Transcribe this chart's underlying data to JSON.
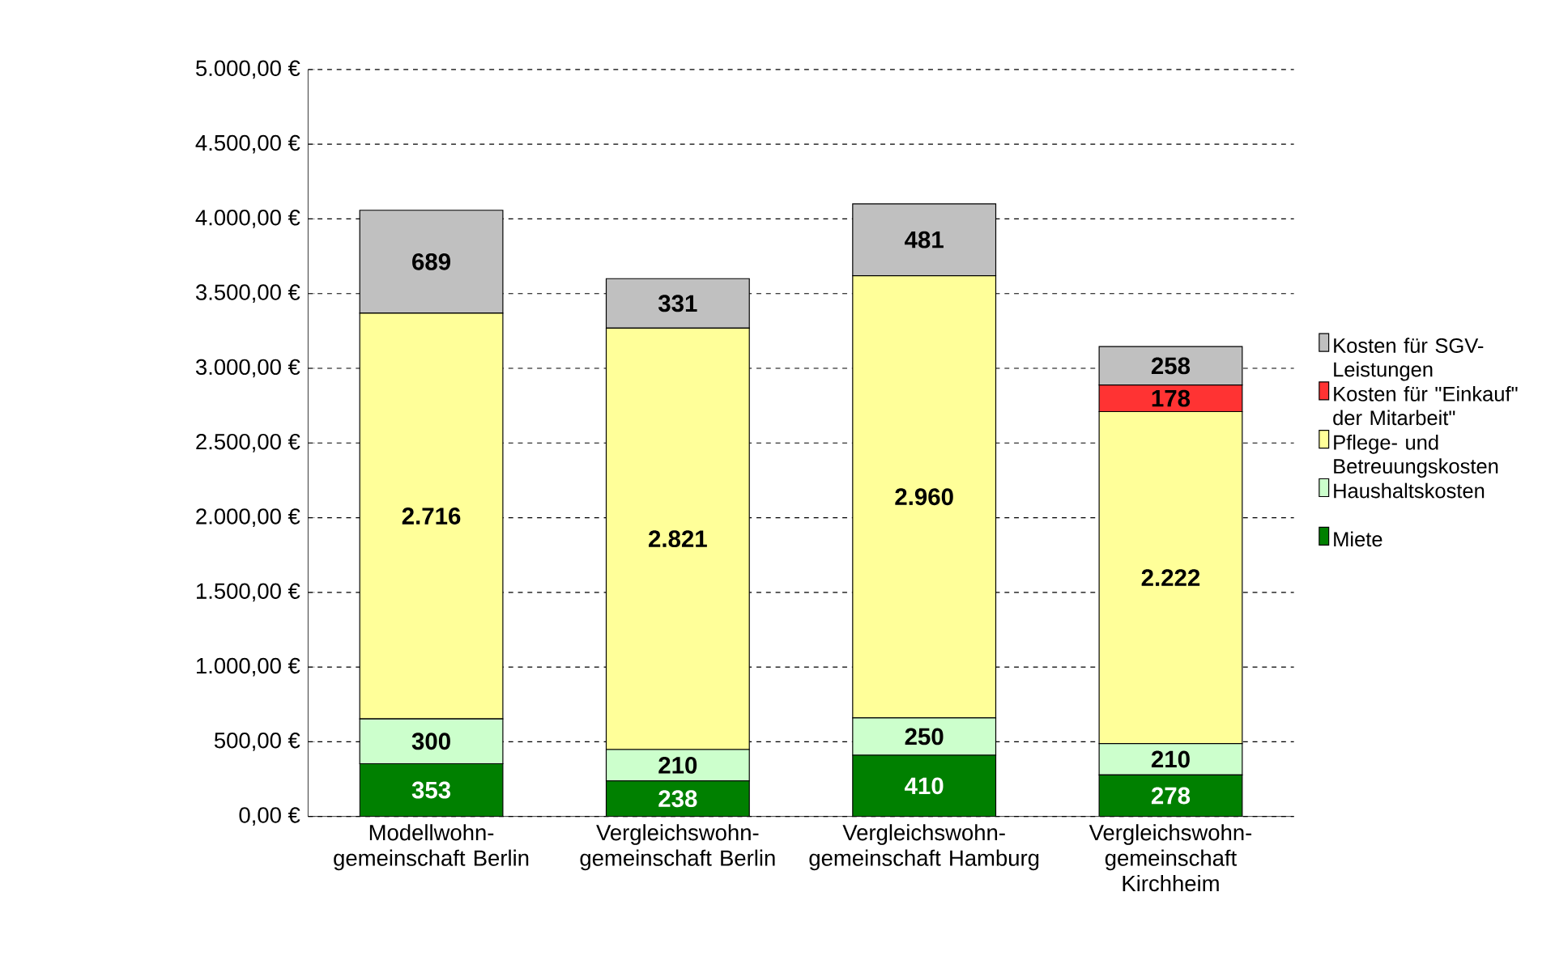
{
  "chart_data": {
    "type": "bar",
    "stacked": true,
    "categories": [
      "Modellwohn-gemeinschaft Berlin",
      "Vergleichswohn-gemeinschaft Berlin",
      "Vergleichswohn-gemeinschaft Hamburg",
      "Vergleichswohn-gemeinschaft Kirchheim"
    ],
    "series": [
      {
        "name": "Miete",
        "color": "#008000",
        "values": [
          353,
          238,
          410,
          278
        ],
        "value_labels": [
          "353",
          "238",
          "410",
          "278"
        ]
      },
      {
        "name": "Haushaltskosten",
        "color": "#ccffcc",
        "values": [
          300,
          210,
          250,
          210
        ],
        "value_labels": [
          "300",
          "210",
          "250",
          "210"
        ]
      },
      {
        "name": "Pflege- und Betreuungskosten",
        "color": "#ffff99",
        "values": [
          2716,
          2821,
          2960,
          2222
        ],
        "value_labels": [
          "2.716",
          "2.821",
          "2.960",
          "2.222"
        ]
      },
      {
        "name": "Kosten für \"Einkauf\" der Mitarbeit\"",
        "color": "#ff3333",
        "values": [
          null,
          null,
          null,
          178
        ],
        "value_labels": [
          null,
          null,
          null,
          "178"
        ]
      },
      {
        "name": "Kosten für SGV-Leistungen",
        "color": "#c0c0c0",
        "values": [
          689,
          331,
          481,
          258
        ],
        "value_labels": [
          "689",
          "331",
          "481",
          "258"
        ]
      }
    ],
    "ylim": [
      0,
      5000
    ],
    "yticks": [
      {
        "value": 0,
        "label": "0,00 €"
      },
      {
        "value": 500,
        "label": "500,00 €"
      },
      {
        "value": 1000,
        "label": "1.000,00 €"
      },
      {
        "value": 1500,
        "label": "1.500,00 €"
      },
      {
        "value": 2000,
        "label": "2.000,00 €"
      },
      {
        "value": 2500,
        "label": "2.500,00 €"
      },
      {
        "value": 3000,
        "label": "3.000,00 €"
      },
      {
        "value": 3500,
        "label": "3.500,00 €"
      },
      {
        "value": 4000,
        "label": "4.000,00 €"
      },
      {
        "value": 4500,
        "label": "4.500,00 €"
      },
      {
        "value": 5000,
        "label": "5.000,00 €"
      }
    ],
    "grid": "y",
    "legend": "right"
  }
}
